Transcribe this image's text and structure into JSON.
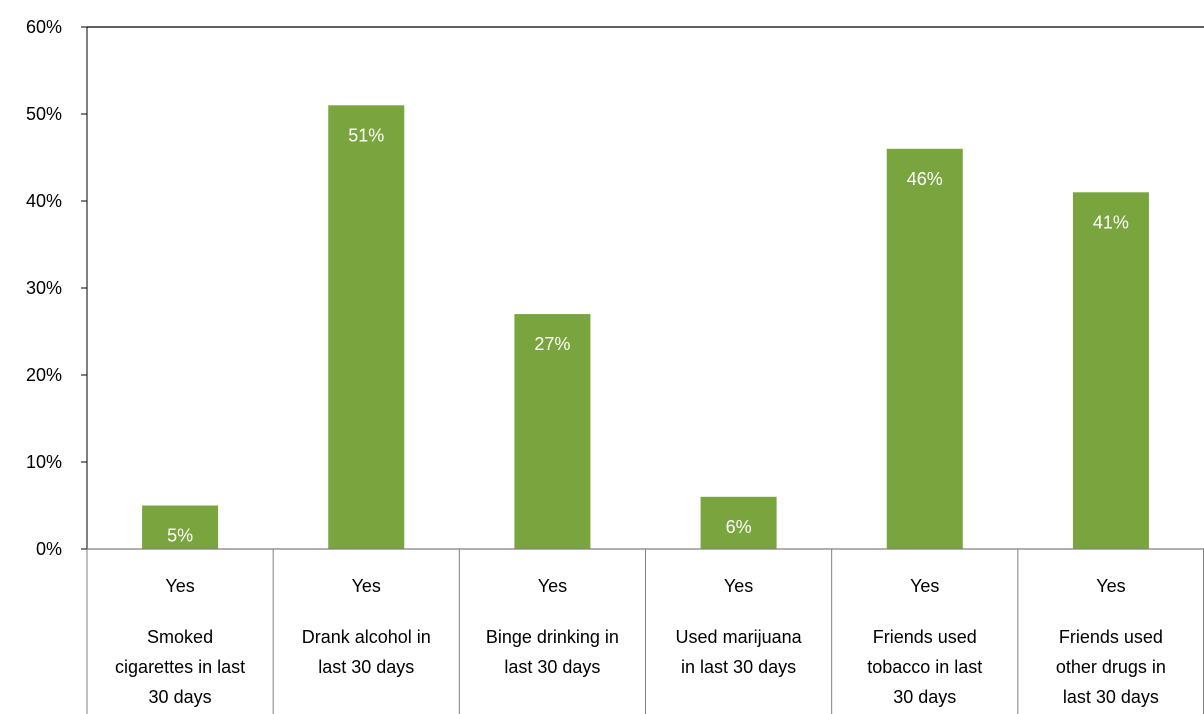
{
  "chart_data": {
    "type": "bar",
    "categories": [
      {
        "top": "Yes",
        "bottom": [
          "Smoked",
          "cigarettes in last",
          "30 days"
        ]
      },
      {
        "top": "Yes",
        "bottom": [
          "Drank alcohol in",
          "last 30 days"
        ]
      },
      {
        "top": "Yes",
        "bottom": [
          "Binge drinking in",
          "last 30 days"
        ]
      },
      {
        "top": "Yes",
        "bottom": [
          "Used marijuana",
          "in last 30 days"
        ]
      },
      {
        "top": "Yes",
        "bottom": [
          "Friends used",
          "tobacco in last",
          "30 days"
        ]
      },
      {
        "top": "Yes",
        "bottom": [
          "Friends used",
          "other drugs in",
          "last 30 days"
        ]
      }
    ],
    "values": [
      5,
      51,
      27,
      6,
      46,
      41
    ],
    "data_labels": [
      "5%",
      "51%",
      "27%",
      "6%",
      "46%",
      "41%"
    ],
    "y_ticks": [
      "0%",
      "10%",
      "20%",
      "30%",
      "40%",
      "50%",
      "60%"
    ],
    "ylim": [
      0,
      60
    ],
    "grid": false,
    "legend": "none",
    "bar_color": "#7aa43e",
    "label_color": "#ffffff",
    "axis_color": "#000000",
    "table_line_color": "#808080"
  }
}
